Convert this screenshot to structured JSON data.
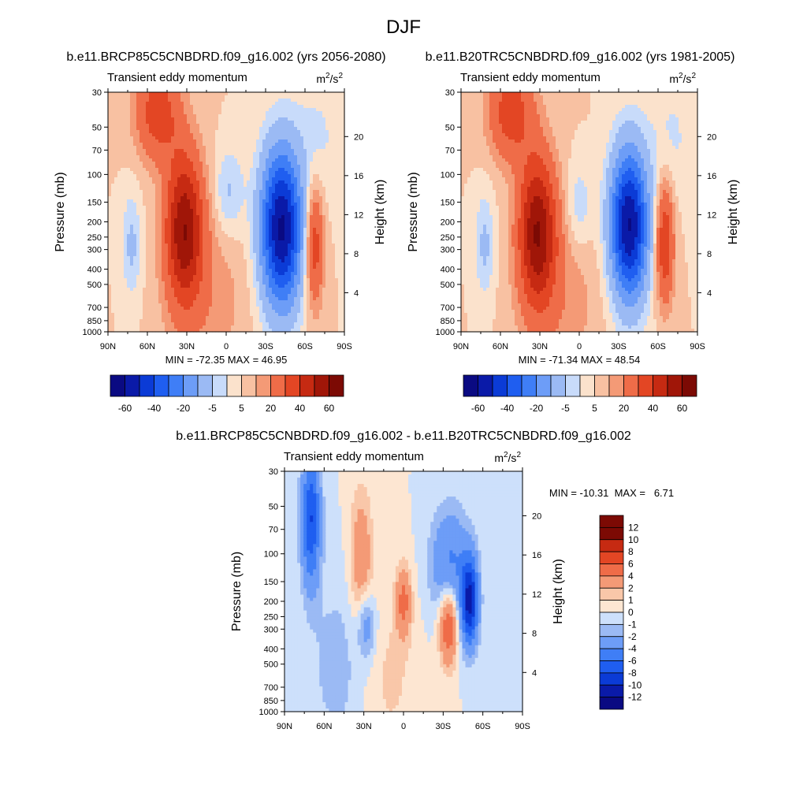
{
  "page_title": "DJF",
  "chart_data": [
    {
      "type": "heatmap",
      "panel_title": "b.e11.BRCP85C5CNBDRD.f09_g16.002 (yrs 2056-2080)",
      "left_label": "Transient eddy momentum",
      "units_base": "m",
      "units_sup1": "2",
      "units_mid": "/s",
      "units_sup2": "2",
      "ylabel": "Pressure (mb)",
      "ylabel_right": "Height (km)",
      "x_ticks": [
        "90N",
        "60N",
        "30N",
        "0",
        "30S",
        "60S",
        "90S"
      ],
      "y_ticks": [
        "30",
        "50",
        "70",
        "100",
        "150",
        "200",
        "250",
        "300",
        "400",
        "500",
        "700",
        "850",
        "1000"
      ],
      "y_ticks_right": [
        "20",
        "16",
        "12",
        "8",
        "4"
      ],
      "stats": "MIN = -72.35  MAX = 46.95",
      "colorbar_labels": [
        "-60",
        "-40",
        "-20",
        "-5",
        "5",
        "20",
        "40",
        "60"
      ],
      "levels": [
        -70,
        -60,
        -50,
        -40,
        -30,
        -20,
        -10,
        -5,
        0,
        5,
        10,
        20,
        30,
        40,
        50,
        60,
        70
      ],
      "features": [
        {
          "lat": 32,
          "p": 220,
          "amp": 47,
          "wlat": 10,
          "wz": 1.7
        },
        {
          "lat": 52,
          "p": 40,
          "amp": 26,
          "wlat": 12,
          "wz": 1.1
        },
        {
          "lat": 14,
          "p": 600,
          "amp": 8,
          "wlat": 22,
          "wz": 2.2
        },
        {
          "lat": -42,
          "p": 220,
          "amp": -72,
          "wlat": 11,
          "wz": 1.8
        },
        {
          "lat": -2,
          "p": 130,
          "amp": -12,
          "wlat": 8,
          "wz": 1.0
        },
        {
          "lat": 72,
          "p": 280,
          "amp": -12,
          "wlat": 5,
          "wz": 1.2
        },
        {
          "lat": -67,
          "p": 280,
          "amp": 28,
          "wlat": 5,
          "wz": 1.4
        },
        {
          "lat": -70,
          "p": 60,
          "amp": -6,
          "wlat": 12,
          "wz": 1.5
        }
      ]
    },
    {
      "type": "heatmap",
      "panel_title": "b.e11.B20TRC5CNBDRD.f09_g16.002 (yrs 1981-2005)",
      "left_label": "Transient eddy momentum",
      "units_base": "m",
      "units_sup1": "2",
      "units_mid": "/s",
      "units_sup2": "2",
      "ylabel": "Pressure (mb)",
      "ylabel_right": "Height (km)",
      "x_ticks": [
        "90N",
        "60N",
        "30N",
        "0",
        "30S",
        "60S",
        "90S"
      ],
      "y_ticks": [
        "30",
        "50",
        "70",
        "100",
        "150",
        "200",
        "250",
        "300",
        "400",
        "500",
        "700",
        "850",
        "1000"
      ],
      "y_ticks_right": [
        "20",
        "16",
        "12",
        "8",
        "4"
      ],
      "stats": "MIN = -71.34  MAX = 48.54",
      "colorbar_labels": [
        "-60",
        "-40",
        "-20",
        "-5",
        "5",
        "20",
        "40",
        "60"
      ],
      "levels": [
        -70,
        -60,
        -50,
        -40,
        -30,
        -20,
        -10,
        -5,
        0,
        5,
        10,
        20,
        30,
        40,
        50,
        60,
        70
      ],
      "features": [
        {
          "lat": 32,
          "p": 230,
          "amp": 48,
          "wlat": 10,
          "wz": 1.7
        },
        {
          "lat": 52,
          "p": 40,
          "amp": 26,
          "wlat": 12,
          "wz": 1.1
        },
        {
          "lat": 14,
          "p": 600,
          "amp": 8,
          "wlat": 22,
          "wz": 2.2
        },
        {
          "lat": -38,
          "p": 210,
          "amp": -71,
          "wlat": 10,
          "wz": 1.7
        },
        {
          "lat": 0,
          "p": 160,
          "amp": -10,
          "wlat": 7,
          "wz": 1.0
        },
        {
          "lat": 72,
          "p": 280,
          "amp": -12,
          "wlat": 5,
          "wz": 1.2
        },
        {
          "lat": -65,
          "p": 270,
          "amp": 30,
          "wlat": 5,
          "wz": 1.4
        },
        {
          "lat": -70,
          "p": 60,
          "amp": -6,
          "wlat": 12,
          "wz": 1.5
        }
      ]
    },
    {
      "type": "heatmap",
      "panel_title": "b.e11.BRCP85C5CNBDRD.f09_g16.002 - b.e11.B20TRC5CNBDRD.f09_g16.002",
      "left_label": "Transient eddy momentum",
      "units_base": "m",
      "units_sup1": "2",
      "units_mid": "/s",
      "units_sup2": "2",
      "ylabel": "Pressure (mb)",
      "ylabel_right": "Height (km)",
      "x_ticks": [
        "90N",
        "60N",
        "30N",
        "0",
        "30S",
        "60S",
        "90S"
      ],
      "y_ticks": [
        "30",
        "50",
        "70",
        "100",
        "150",
        "200",
        "250",
        "300",
        "400",
        "500",
        "700",
        "850",
        "1000"
      ],
      "y_ticks_right": [
        "20",
        "16",
        "12",
        "8",
        "4"
      ],
      "stats": "MIN = -10.31  MAX =   6.71",
      "colorbar_labels": [
        "12",
        "10",
        "8",
        "6",
        "4",
        "2",
        "1",
        "0",
        "-1",
        "-2",
        "-4",
        "-6",
        "-8",
        "-10",
        "-12"
      ],
      "levels": [
        -12,
        -10,
        -8,
        -6,
        -4,
        -2,
        -1,
        0,
        1,
        2,
        4,
        6,
        8,
        10,
        12
      ],
      "features": [
        {
          "lat": 70,
          "p": 60,
          "amp": -8,
          "wlat": 5,
          "wz": 1.5
        },
        {
          "lat": 32,
          "p": 110,
          "amp": 3.5,
          "wlat": 6,
          "wz": 1.6
        },
        {
          "lat": 28,
          "p": 280,
          "amp": -3.5,
          "wlat": 5,
          "wz": 0.8
        },
        {
          "lat": 0,
          "p": 200,
          "amp": 4.5,
          "wlat": 4,
          "wz": 0.8
        },
        {
          "lat": -34,
          "p": 280,
          "amp": 6.7,
          "wlat": 5,
          "wz": 0.9
        },
        {
          "lat": -50,
          "p": 200,
          "amp": -10.3,
          "wlat": 4.5,
          "wz": 1.0
        },
        {
          "lat": -35,
          "p": 120,
          "amp": -4.5,
          "wlat": 10,
          "wz": 1.3
        },
        {
          "lat": 50,
          "p": 500,
          "amp": -1.5,
          "wlat": 15,
          "wz": 2.0
        },
        {
          "lat": 10,
          "p": 600,
          "amp": 1.2,
          "wlat": 15,
          "wz": 2.0
        }
      ]
    }
  ]
}
